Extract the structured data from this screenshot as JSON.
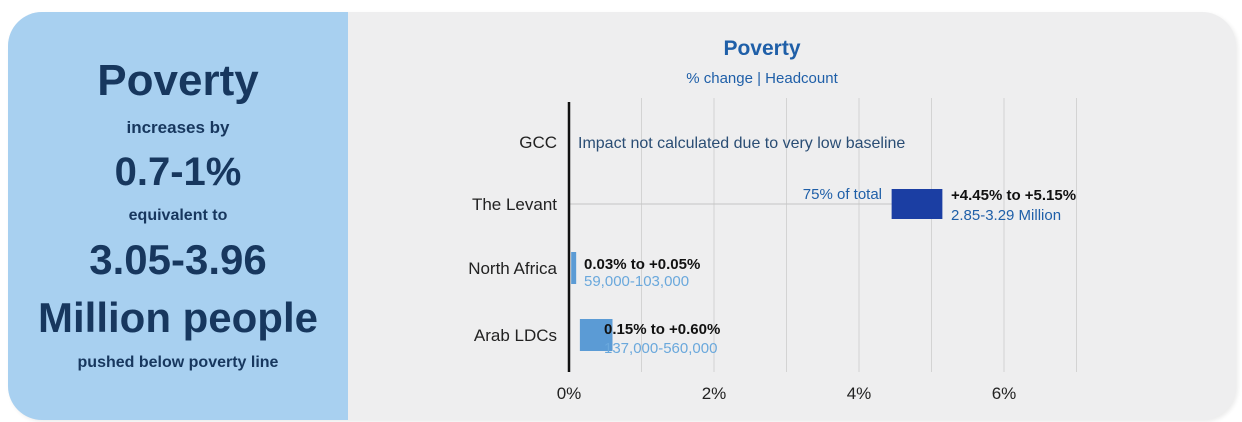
{
  "summary": {
    "title": "Poverty",
    "line1": "increases  by",
    "range": "0.7-1%",
    "line2": "equivalent to",
    "people_line1": "3.05-3.96",
    "people_line2": "Million people",
    "line3": "pushed below poverty line"
  },
  "colors": {
    "panel": "#a8d0f0",
    "panel_text": "#17375e",
    "title_blue": "#1f5fa8",
    "dark_bar": "#1b3ea3",
    "light_bar": "#5b9bd5",
    "light_text": "#6aa8dc"
  },
  "chart_data": {
    "type": "bar",
    "orientation": "horizontal",
    "title": "Poverty",
    "subtitle": "% change | Headcount",
    "categories": [
      "GCC",
      "The Levant",
      "North Africa",
      "Arab LDCs"
    ],
    "ranges": [
      null,
      {
        "low": 4.45,
        "high": 5.15
      },
      {
        "low": 0.03,
        "high": 0.05
      },
      {
        "low": 0.15,
        "high": 0.6
      }
    ],
    "labels": [
      {
        "note": "Impact not calculated due to very low baseline"
      },
      {
        "pct": "+4.45% to +5.15%",
        "headcount": "2.85-3.29 Million",
        "share": "75% of total"
      },
      {
        "pct": "0.03% to +0.05%",
        "headcount": "59,000-103,000"
      },
      {
        "pct": "0.15% to +0.60%",
        "headcount": "137,000-560,000"
      }
    ],
    "xticks": [
      "0%",
      "2%",
      "4%",
      "6%"
    ],
    "xtick_values": [
      0,
      2,
      4,
      6
    ],
    "xlim": [
      0,
      7.7
    ],
    "gridlines": [
      1,
      2,
      3,
      4,
      5,
      6,
      7
    ]
  }
}
